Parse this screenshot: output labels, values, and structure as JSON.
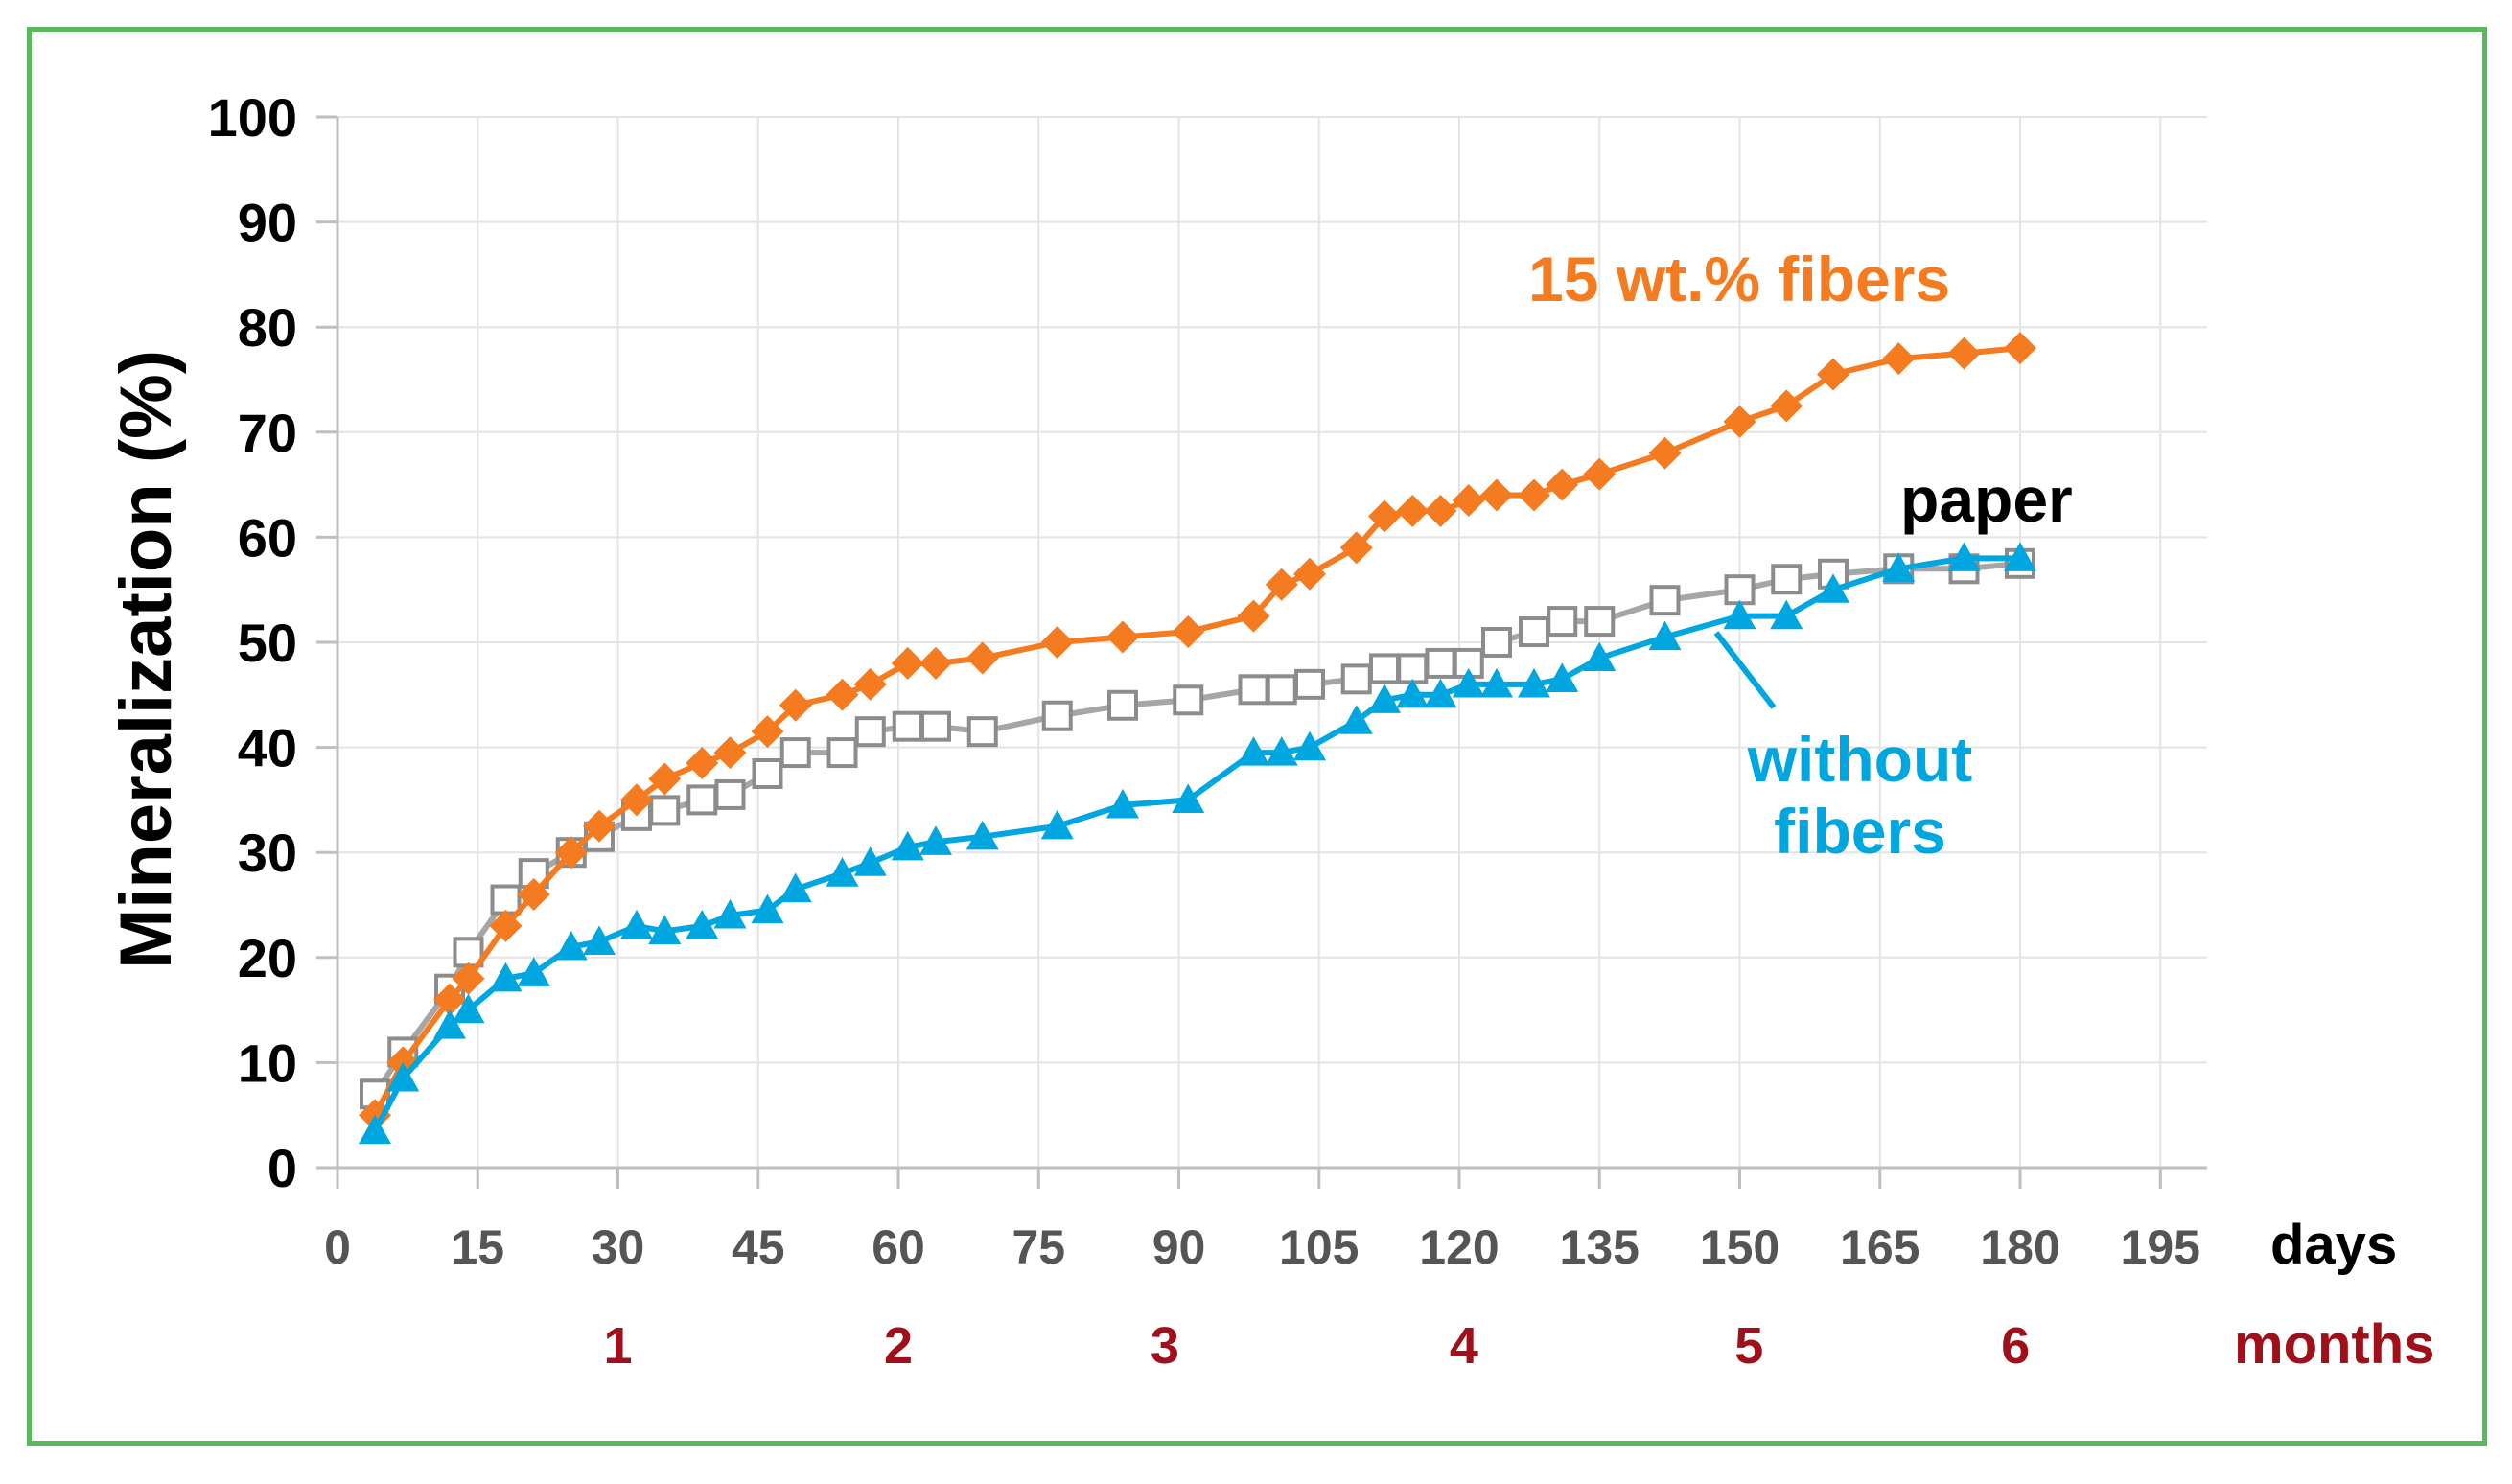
{
  "chart_data": {
    "type": "line",
    "title": "",
    "ylabel": "Mineralization (%)",
    "xlabel": "days",
    "xlabel2": "months",
    "xlim": [
      0,
      200
    ],
    "ylim": [
      0,
      100
    ],
    "yticks": [
      0,
      10,
      20,
      30,
      40,
      50,
      60,
      70,
      80,
      90,
      100
    ],
    "xticks": [
      0,
      15,
      30,
      45,
      60,
      75,
      90,
      105,
      120,
      135,
      150,
      165,
      180,
      195
    ],
    "month_ticks": [
      {
        "label": "1",
        "day": 30
      },
      {
        "label": "2",
        "day": 60
      },
      {
        "label": "3",
        "day": 88.5
      },
      {
        "label": "4",
        "day": 120.5
      },
      {
        "label": "5",
        "day": 151
      },
      {
        "label": "6",
        "day": 179.5
      }
    ],
    "grid": true,
    "series": [
      {
        "name": "15 wt.% fibers",
        "color": "#f47b20",
        "marker": "diamond",
        "x": [
          4,
          7,
          12,
          14,
          18,
          21,
          25,
          28,
          32,
          35,
          39,
          42,
          46,
          49,
          54,
          57,
          61,
          64,
          69,
          77,
          84,
          91,
          98,
          101,
          104,
          109,
          112,
          115,
          118,
          121,
          124,
          128,
          131,
          135,
          142,
          150,
          155,
          160,
          167,
          174,
          180
        ],
        "y": [
          5,
          10,
          16,
          18,
          23,
          26,
          30,
          32.5,
          35,
          37,
          38.5,
          39.5,
          41.5,
          44,
          45,
          46,
          48,
          48,
          48.5,
          50,
          50.5,
          51,
          52.5,
          55.5,
          56.5,
          59,
          62,
          62.5,
          62.5,
          63.5,
          64,
          64,
          65,
          66,
          68,
          71,
          72.5,
          75.5,
          77,
          77.5,
          78
        ]
      },
      {
        "name": "paper",
        "color": "#a6a6a6",
        "marker": "square",
        "x": [
          4,
          7,
          12,
          14,
          18,
          21,
          25,
          28,
          32,
          35,
          39,
          42,
          46,
          49,
          54,
          57,
          61,
          64,
          69,
          77,
          84,
          91,
          98,
          101,
          104,
          109,
          112,
          115,
          118,
          121,
          124,
          128,
          131,
          135,
          142,
          150,
          155,
          160,
          167,
          174,
          180
        ],
        "y": [
          7,
          11,
          17,
          20.5,
          25.5,
          28,
          30,
          31.5,
          33.5,
          34,
          35,
          35.5,
          37.5,
          39.5,
          39.5,
          41.5,
          42,
          42,
          41.5,
          43,
          44,
          44.5,
          45.5,
          45.5,
          46,
          46.5,
          47.5,
          47.5,
          48,
          48,
          50,
          51,
          52,
          52,
          54,
          55,
          56,
          56.5,
          57,
          57,
          57.5
        ]
      },
      {
        "name": "without fibers",
        "color": "#00a6e0",
        "marker": "triangle",
        "x": [
          4,
          7,
          12,
          14,
          18,
          21,
          25,
          28,
          32,
          35,
          39,
          42,
          46,
          49,
          54,
          57,
          61,
          64,
          69,
          77,
          84,
          91,
          98,
          101,
          104,
          109,
          112,
          115,
          118,
          121,
          124,
          128,
          131,
          135,
          142,
          150,
          155,
          160,
          167,
          174,
          180
        ],
        "y": [
          3.5,
          8.5,
          13.5,
          15,
          18,
          18.5,
          21,
          21.5,
          23,
          22.5,
          23,
          24,
          24.5,
          26.5,
          28,
          29,
          30.5,
          31,
          31.5,
          32.5,
          34.5,
          35,
          39.5,
          39.5,
          40,
          42.5,
          44.5,
          45,
          45,
          46,
          46,
          46,
          46.5,
          48.5,
          50.5,
          52.5,
          52.5,
          55,
          57,
          58,
          58
        ]
      }
    ]
  },
  "annotations": {
    "fibers": {
      "text": "15 wt.% fibers",
      "color": "#f47b20"
    },
    "paper": {
      "text": "paper",
      "color": "#000000"
    },
    "without_line1": {
      "text": "without",
      "color": "#00a6e0"
    },
    "without_line2": {
      "text": "fibers",
      "color": "#00a6e0"
    }
  }
}
